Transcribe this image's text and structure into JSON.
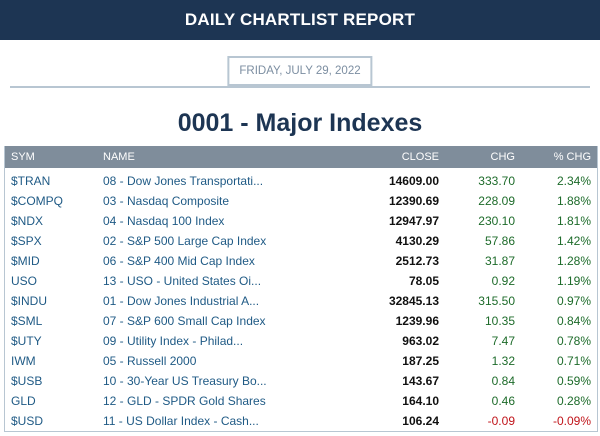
{
  "report": {
    "banner_title": "DAILY CHARTLIST REPORT",
    "date": "FRIDAY, JULY 29, 2022",
    "list_title": "0001 - Major Indexes"
  },
  "colors": {
    "banner_bg": "#1d3553",
    "header_bg": "#7f8d9b",
    "link": "#1f5a85",
    "positive": "#1d6b2a",
    "negative": "#c0141a"
  },
  "table": {
    "columns": [
      "SYM",
      "NAME",
      "CLOSE",
      "CHG",
      "% CHG"
    ],
    "rows": [
      {
        "sym": "$TRAN",
        "name": "08 - Dow Jones Transportati...",
        "close": "14609.00",
        "chg": "333.70",
        "pct": "2.34%",
        "dir": "pos"
      },
      {
        "sym": "$COMPQ",
        "name": "03 - Nasdaq Composite",
        "close": "12390.69",
        "chg": "228.09",
        "pct": "1.88%",
        "dir": "pos"
      },
      {
        "sym": "$NDX",
        "name": "04 - Nasdaq 100 Index",
        "close": "12947.97",
        "chg": "230.10",
        "pct": "1.81%",
        "dir": "pos"
      },
      {
        "sym": "$SPX",
        "name": "02 - S&P 500 Large Cap Index",
        "close": "4130.29",
        "chg": "57.86",
        "pct": "1.42%",
        "dir": "pos"
      },
      {
        "sym": "$MID",
        "name": "06 - S&P 400 Mid Cap Index",
        "close": "2512.73",
        "chg": "31.87",
        "pct": "1.28%",
        "dir": "pos"
      },
      {
        "sym": "USO",
        "name": "13 - USO - United States Oi...",
        "close": "78.05",
        "chg": "0.92",
        "pct": "1.19%",
        "dir": "pos"
      },
      {
        "sym": "$INDU",
        "name": "01 - Dow Jones Industrial A...",
        "close": "32845.13",
        "chg": "315.50",
        "pct": "0.97%",
        "dir": "pos"
      },
      {
        "sym": "$SML",
        "name": "07 - S&P 600 Small Cap Index",
        "close": "1239.96",
        "chg": "10.35",
        "pct": "0.84%",
        "dir": "pos"
      },
      {
        "sym": "$UTY",
        "name": "09 - Utility Index - Philad...",
        "close": "963.02",
        "chg": "7.47",
        "pct": "0.78%",
        "dir": "pos"
      },
      {
        "sym": "IWM",
        "name": "05 - Russell 2000",
        "close": "187.25",
        "chg": "1.32",
        "pct": "0.71%",
        "dir": "pos"
      },
      {
        "sym": "$USB",
        "name": "10 - 30-Year US Treasury Bo...",
        "close": "143.67",
        "chg": "0.84",
        "pct": "0.59%",
        "dir": "pos"
      },
      {
        "sym": "GLD",
        "name": "12 - GLD - SPDR Gold Shares",
        "close": "164.10",
        "chg": "0.46",
        "pct": "0.28%",
        "dir": "pos"
      },
      {
        "sym": "$USD",
        "name": "11 - US Dollar Index - Cash...",
        "close": "106.24",
        "chg": "-0.09",
        "pct": "-0.09%",
        "dir": "neg"
      }
    ]
  }
}
